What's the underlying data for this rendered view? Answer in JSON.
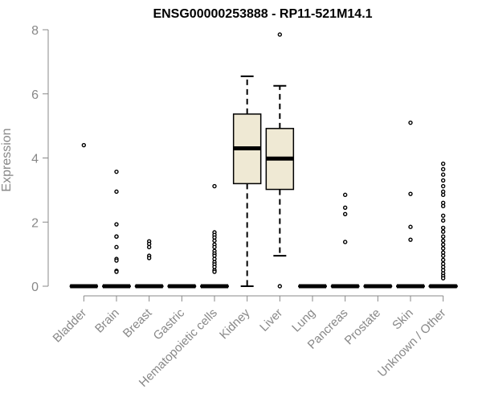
{
  "chart_data": {
    "type": "box",
    "title": "ENSG00000253888 - RP11-521M14.1",
    "xlabel": "",
    "ylabel": "Expression",
    "ylim": [
      0,
      8
    ],
    "yticks": [
      "0",
      "2",
      "4",
      "6",
      "8"
    ],
    "grid": false,
    "legend": "none",
    "colors": {
      "box_fill": "#efe9d4",
      "box_stroke": "#000000",
      "axis": "#888888",
      "title": "#000000"
    },
    "categories": [
      "Bladder",
      "Brain",
      "Breast",
      "Gastric",
      "Hematopoietic cells",
      "Kidney",
      "Liver",
      "Lung",
      "Pancreas",
      "Prostate",
      "Skin",
      "Unknown / Other"
    ],
    "boxes": [
      {
        "category": "Bladder",
        "q1": 0,
        "median": 0,
        "q3": 0,
        "whisker_low": 0,
        "whisker_high": 0,
        "outliers": [
          4.4
        ],
        "zero_jitter": 12
      },
      {
        "category": "Brain",
        "q1": 0,
        "median": 0,
        "q3": 0,
        "whisker_low": 0,
        "whisker_high": 0,
        "outliers": [
          3.57,
          2.95,
          1.93,
          1.55,
          1.55,
          1.22,
          0.85,
          0.8,
          0.48,
          0.45
        ],
        "zero_jitter": 14
      },
      {
        "category": "Breast",
        "q1": 0,
        "median": 0,
        "q3": 0,
        "whisker_low": 0,
        "whisker_high": 0,
        "outliers": [
          1.4,
          1.32,
          1.22,
          0.95,
          0.88
        ],
        "zero_jitter": 14
      },
      {
        "category": "Gastric",
        "q1": 0,
        "median": 0,
        "q3": 0,
        "whisker_low": 0,
        "whisker_high": 0,
        "outliers": [],
        "zero_jitter": 14
      },
      {
        "category": "Hematopoietic cells",
        "q1": 0,
        "median": 0,
        "q3": 0,
        "whisker_low": 0,
        "whisker_high": 0,
        "outliers": [
          3.12,
          1.68,
          1.6,
          1.52,
          1.42,
          1.3,
          1.22,
          1.1,
          1.02,
          0.95,
          0.85,
          0.75,
          0.68,
          0.6,
          0.5,
          0.45
        ],
        "zero_jitter": 14
      },
      {
        "category": "Kidney",
        "q1": 3.2,
        "median": 4.3,
        "q3": 5.37,
        "whisker_low": 0,
        "whisker_high": 6.55,
        "outliers": []
      },
      {
        "category": "Liver",
        "q1": 3.02,
        "median": 3.98,
        "q3": 4.92,
        "whisker_low": 0.95,
        "whisker_high": 6.25,
        "outliers": [
          7.85,
          0
        ]
      },
      {
        "category": "Lung",
        "q1": 0,
        "median": 0,
        "q3": 0,
        "whisker_low": 0,
        "whisker_high": 0,
        "outliers": [],
        "zero_jitter": 14
      },
      {
        "category": "Pancreas",
        "q1": 0,
        "median": 0,
        "q3": 0,
        "whisker_low": 0,
        "whisker_high": 0,
        "outliers": [
          2.85,
          2.45,
          2.25,
          1.38
        ],
        "zero_jitter": 14
      },
      {
        "category": "Prostate",
        "q1": 0,
        "median": 0,
        "q3": 0,
        "whisker_low": 0,
        "whisker_high": 0,
        "outliers": [],
        "zero_jitter": 14
      },
      {
        "category": "Skin",
        "q1": 0,
        "median": 0,
        "q3": 0,
        "whisker_low": 0,
        "whisker_high": 0,
        "outliers": [
          5.1,
          2.88,
          1.85,
          1.45
        ],
        "zero_jitter": 14
      },
      {
        "category": "Unknown / Other",
        "q1": 0,
        "median": 0,
        "q3": 0,
        "whisker_low": 0,
        "whisker_high": 0,
        "outliers": [
          3.82,
          3.65,
          3.48,
          3.3,
          3.12,
          2.95,
          2.85,
          2.6,
          2.5,
          2.2,
          2.05,
          1.82,
          1.7,
          1.55,
          1.42,
          1.3,
          1.18,
          1.05,
          0.95,
          0.82,
          0.7,
          0.6,
          0.5,
          0.4,
          0.32,
          0.25
        ],
        "zero_jitter": 18
      }
    ]
  }
}
